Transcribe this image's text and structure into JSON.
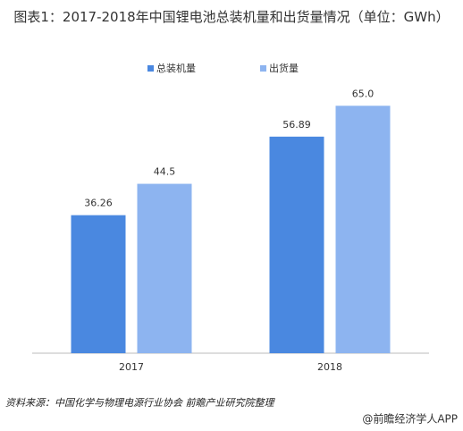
{
  "chart_data": {
    "type": "bar",
    "title": "图表1：2017-2018年中国锂电池总装机量和出货量情况（单位：GWh）",
    "categories": [
      "2017",
      "2018"
    ],
    "series": [
      {
        "name": "总装机量",
        "color": "#4a88e0",
        "values": [
          36.26,
          56.89
        ],
        "value_labels": [
          "36.26",
          "56.89"
        ]
      },
      {
        "name": "出货量",
        "color": "#8db4f0",
        "values": [
          44.5,
          65.0
        ],
        "value_labels": [
          "44.5",
          "65.0"
        ]
      }
    ],
    "ylim": [
      0,
      70
    ],
    "source": "资料来源：中国化学与物理电源行业协会 前瞻产业研究院整理",
    "credit": "@前瞻经济学人APP"
  }
}
